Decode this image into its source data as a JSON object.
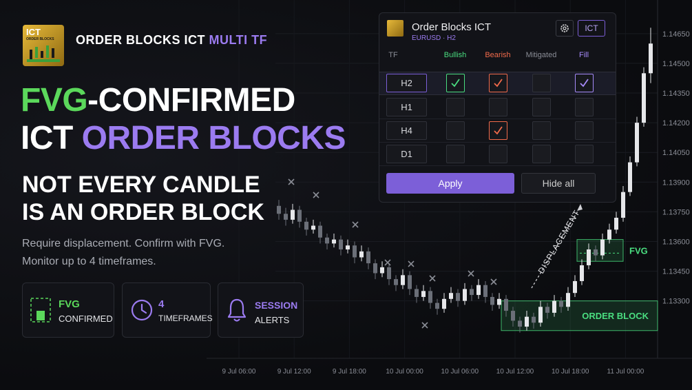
{
  "brand": {
    "logo_title": "ICT",
    "logo_subtitle": "ORDER BLOCKS",
    "name": "ORDER BLOCKS ICT",
    "highlight": "MULTI TF"
  },
  "headline": {
    "line1_green": "FVG",
    "line1_white": "-CONFIRMED",
    "line2_white": "ICT",
    "line2_purple": "ORDER BLOCKS"
  },
  "subheadline": [
    "NOT EVERY CANDLE",
    "IS AN ORDER BLOCK"
  ],
  "description": [
    "Require displacement. Confirm with FVG.",
    "Monitor up to 4 timeframes."
  ],
  "features": [
    {
      "title": "FVG",
      "caption": "CONFIRMED"
    },
    {
      "title": "4",
      "caption": "TIMEFRAMES"
    },
    {
      "title": "SESSION",
      "caption": "ALERTS"
    }
  ],
  "panel": {
    "title": "Order Blocks ICT",
    "subtitle": "EURUSD · H2",
    "badge": "ICT",
    "columns": [
      "TF",
      "Bullish",
      "Bearish",
      "Mitigated",
      "Fill"
    ],
    "column_colors": [
      "#8a8d96",
      "#4ade80",
      "#f26b4b",
      "#8a8d96",
      "#a78bfa"
    ],
    "rows": [
      {
        "tf": "H2",
        "selected": true,
        "checks": [
          true,
          true,
          false,
          true
        ]
      },
      {
        "tf": "H1",
        "selected": false,
        "checks": [
          false,
          false,
          false,
          false
        ]
      },
      {
        "tf": "H4",
        "selected": false,
        "checks": [
          false,
          true,
          false,
          false
        ]
      },
      {
        "tf": "D1",
        "selected": false,
        "checks": [
          false,
          false,
          false,
          false
        ]
      }
    ],
    "apply": "Apply",
    "hide": "Hide all"
  },
  "chart_data": {
    "type": "candlestick",
    "categories": [
      "9 Jul 06:00",
      "9 Jul 12:00",
      "9 Jul 18:00",
      "10 Jul 00:00",
      "10 Jul 06:00",
      "10 Jul 12:00",
      "10 Jul 18:00",
      "11 Jul 00:00"
    ],
    "ylim": [
      1.1301,
      1.1482
    ],
    "yticks": [
      {
        "value": 1.1465,
        "label": "1.14650"
      },
      {
        "value": 1.145,
        "label": "1.14500"
      },
      {
        "value": 1.1435,
        "label": "1.14350"
      },
      {
        "value": 1.142,
        "label": "1.14200"
      },
      {
        "value": 1.1405,
        "label": "1.14050"
      },
      {
        "value": 1.139,
        "label": "1.13900"
      },
      {
        "value": 1.1375,
        "label": "1.13750"
      },
      {
        "value": 1.136,
        "label": "1.13600"
      },
      {
        "value": 1.1345,
        "label": "1.13450"
      },
      {
        "value": 1.133,
        "label": "1.13300"
      }
    ],
    "grid": true,
    "up_color": "#e6e7ea",
    "down_color": "#6b6f78",
    "candles": [
      [
        1.1378,
        1.1381,
        1.1371,
        1.1374
      ],
      [
        1.1374,
        1.1377,
        1.1368,
        1.1371
      ],
      [
        1.1371,
        1.1379,
        1.1369,
        1.1376
      ],
      [
        1.1376,
        1.1378,
        1.1367,
        1.137
      ],
      [
        1.137,
        1.1372,
        1.1363,
        1.1366
      ],
      [
        1.1366,
        1.1371,
        1.1364,
        1.1368
      ],
      [
        1.1368,
        1.137,
        1.1359,
        1.1362
      ],
      [
        1.1362,
        1.1364,
        1.1356,
        1.1359
      ],
      [
        1.1359,
        1.1364,
        1.1357,
        1.1361
      ],
      [
        1.1361,
        1.1363,
        1.1353,
        1.1356
      ],
      [
        1.1356,
        1.1361,
        1.1354,
        1.1358
      ],
      [
        1.1358,
        1.136,
        1.1349,
        1.1352
      ],
      [
        1.1352,
        1.1358,
        1.135,
        1.1355
      ],
      [
        1.1355,
        1.1357,
        1.1346,
        1.1349
      ],
      [
        1.1349,
        1.1351,
        1.1341,
        1.1344
      ],
      [
        1.1344,
        1.135,
        1.1342,
        1.1347
      ],
      [
        1.1347,
        1.1349,
        1.1338,
        1.1341
      ],
      [
        1.1341,
        1.1343,
        1.1335,
        1.1338
      ],
      [
        1.1338,
        1.1346,
        1.1336,
        1.1343
      ],
      [
        1.1343,
        1.1345,
        1.1333,
        1.1336
      ],
      [
        1.1336,
        1.1338,
        1.1329,
        1.1332
      ],
      [
        1.1332,
        1.1338,
        1.133,
        1.1335
      ],
      [
        1.1335,
        1.1337,
        1.1326,
        1.1329
      ],
      [
        1.1329,
        1.1331,
        1.1323,
        1.1326
      ],
      [
        1.1326,
        1.1334,
        1.1324,
        1.1331
      ],
      [
        1.1331,
        1.1337,
        1.1329,
        1.1334
      ],
      [
        1.1334,
        1.1336,
        1.1327,
        1.133
      ],
      [
        1.133,
        1.1339,
        1.1328,
        1.1336
      ],
      [
        1.1336,
        1.1338,
        1.133,
        1.1333
      ],
      [
        1.1333,
        1.1341,
        1.1331,
        1.1338
      ],
      [
        1.1338,
        1.134,
        1.1329,
        1.1332
      ],
      [
        1.1332,
        1.1334,
        1.1325,
        1.1328
      ],
      [
        1.1328,
        1.1334,
        1.1326,
        1.1331
      ],
      [
        1.1331,
        1.1333,
        1.1322,
        1.1325
      ],
      [
        1.1325,
        1.1327,
        1.1317,
        1.132
      ],
      [
        1.132,
        1.1322,
        1.1314,
        1.1317
      ],
      [
        1.1317,
        1.1325,
        1.1315,
        1.1322
      ],
      [
        1.1322,
        1.1324,
        1.1316,
        1.1319
      ],
      [
        1.1319,
        1.133,
        1.1317,
        1.1327
      ],
      [
        1.1327,
        1.1329,
        1.1321,
        1.1324
      ],
      [
        1.1324,
        1.1333,
        1.1322,
        1.133
      ],
      [
        1.133,
        1.1332,
        1.1324,
        1.1327
      ],
      [
        1.1327,
        1.1337,
        1.1325,
        1.1334
      ],
      [
        1.1334,
        1.1343,
        1.1332,
        1.134
      ],
      [
        1.134,
        1.1351,
        1.1338,
        1.1348
      ],
      [
        1.1348,
        1.1359,
        1.1346,
        1.1356
      ],
      [
        1.1356,
        1.1358,
        1.135,
        1.1353
      ],
      [
        1.1353,
        1.1364,
        1.1351,
        1.1361
      ],
      [
        1.1361,
        1.1369,
        1.1359,
        1.1366
      ],
      [
        1.1366,
        1.1375,
        1.1364,
        1.1372
      ],
      [
        1.1372,
        1.1388,
        1.137,
        1.1385
      ],
      [
        1.1385,
        1.1403,
        1.1383,
        1.14
      ],
      [
        1.14,
        1.1423,
        1.1398,
        1.142
      ],
      [
        1.142,
        1.1448,
        1.1418,
        1.1445
      ],
      [
        1.1445,
        1.1468,
        1.144,
        1.146
      ]
    ],
    "order_block": {
      "label": "ORDER BLOCK",
      "top": 1.133,
      "bottom": 1.1315,
      "color": "#4ade80"
    },
    "fvg": {
      "label": "FVG",
      "top": 1.1361,
      "bottom": 1.135,
      "color": "#4ade80"
    },
    "annotation": "DISPLACEMENT"
  }
}
